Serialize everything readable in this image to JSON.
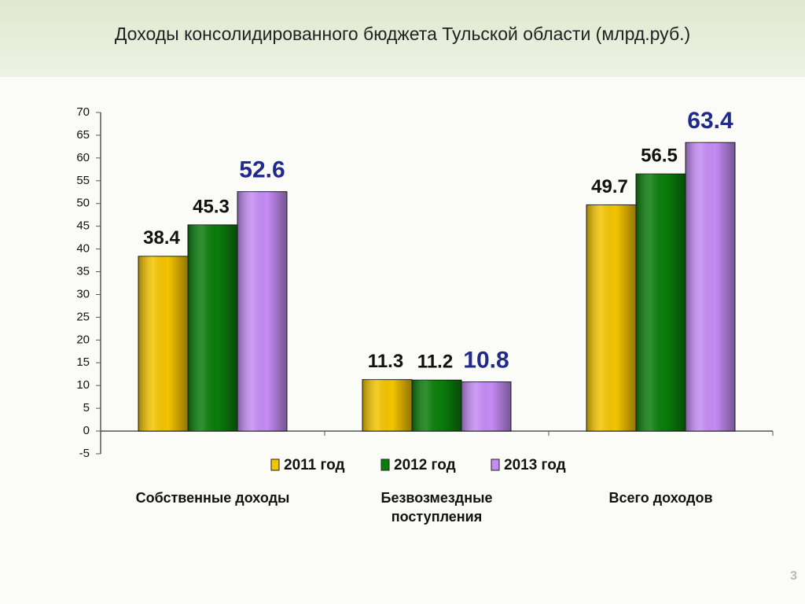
{
  "chart_data": {
    "type": "bar",
    "title": "Доходы консолидированного бюджета Тульской области (млрд.руб.)",
    "categories": [
      "Собственные доходы",
      "Безвозмездные поступления",
      "Всего доходов"
    ],
    "series": [
      {
        "name": "2011 год",
        "color": "#f5c400",
        "values": [
          38.4,
          11.3,
          49.7
        ]
      },
      {
        "name": "2012 год",
        "color": "#0b7d0b",
        "values": [
          45.3,
          11.2,
          56.5
        ]
      },
      {
        "name": "2013 год",
        "color": "#c58cf5",
        "values": [
          52.6,
          10.8,
          63.4
        ]
      }
    ],
    "ylim": [
      -5,
      70
    ],
    "yticks": [
      -5,
      0,
      5,
      10,
      15,
      20,
      25,
      30,
      35,
      40,
      45,
      50,
      55,
      60,
      65,
      70
    ],
    "grid": false,
    "legend": "bottom"
  },
  "slide_number": "3"
}
